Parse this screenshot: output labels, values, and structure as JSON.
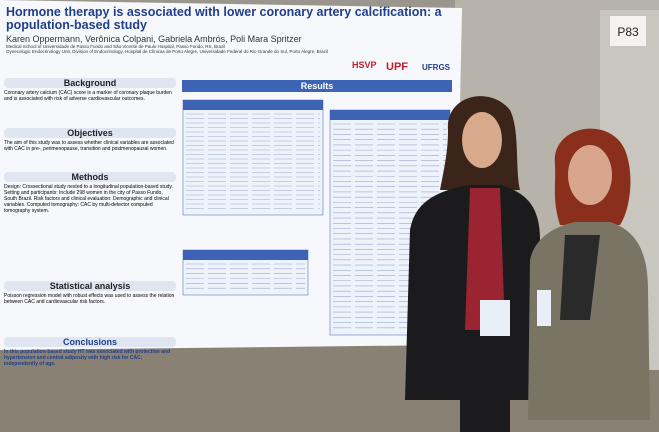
{
  "board_label": "P83",
  "poster": {
    "title": "Hormone therapy is associated with lower coronary artery calcification: a population-based study",
    "authors": "Karen Oppermann, Verônica Colpani, Gabriela Ambrós, Poli Mara Spritzer",
    "affiliations": [
      "Medical School of Universidade de Passo Fundo and São Vicente de Paulo Hospital, Passo Fundo, RS, Brazil",
      "Gynecologic Endocrinology Unit, Division of Endocrinology, Hospital de Clínicas de Porto Alegre, Universidade Federal do Rio Grande do Sul, Porto Alegre, Brazil"
    ],
    "logos": [
      "HSVP",
      "UPF",
      "UFRGS"
    ],
    "sections": [
      {
        "heading": "Background",
        "text": "Coronary artery calcium (CAC) score is a marker of coronary plaque burden and is associated with risk of adverse cardiovascular outcomes."
      },
      {
        "heading": "Objectives",
        "text": "The aim of this study was to assess whether clinical variables are associated with CAC in pre-, perimenopause, transition and postmenopausal women."
      },
      {
        "heading": "Methods",
        "text": "Design: Crossectional study nested to a longitudinal population-based study. Setting and participants: Include 298 women in the city of Passo Fundo, South Brazil. Risk factors and clinical evaluation: Demographic and clinical variables. Computed tomography: CAC by multi-detector computed tomography system."
      },
      {
        "heading": "Statistical analysis",
        "text": "Poisson regression model with robust effects was used to assess the relation between CAC and cardiovascular risk factors."
      },
      {
        "heading": "Conclusions",
        "text": "In this population-based study HT was associated with protection and hypertension and central adiposity with high risk for CAC, independently of age."
      }
    ],
    "results_heading": "Results"
  }
}
